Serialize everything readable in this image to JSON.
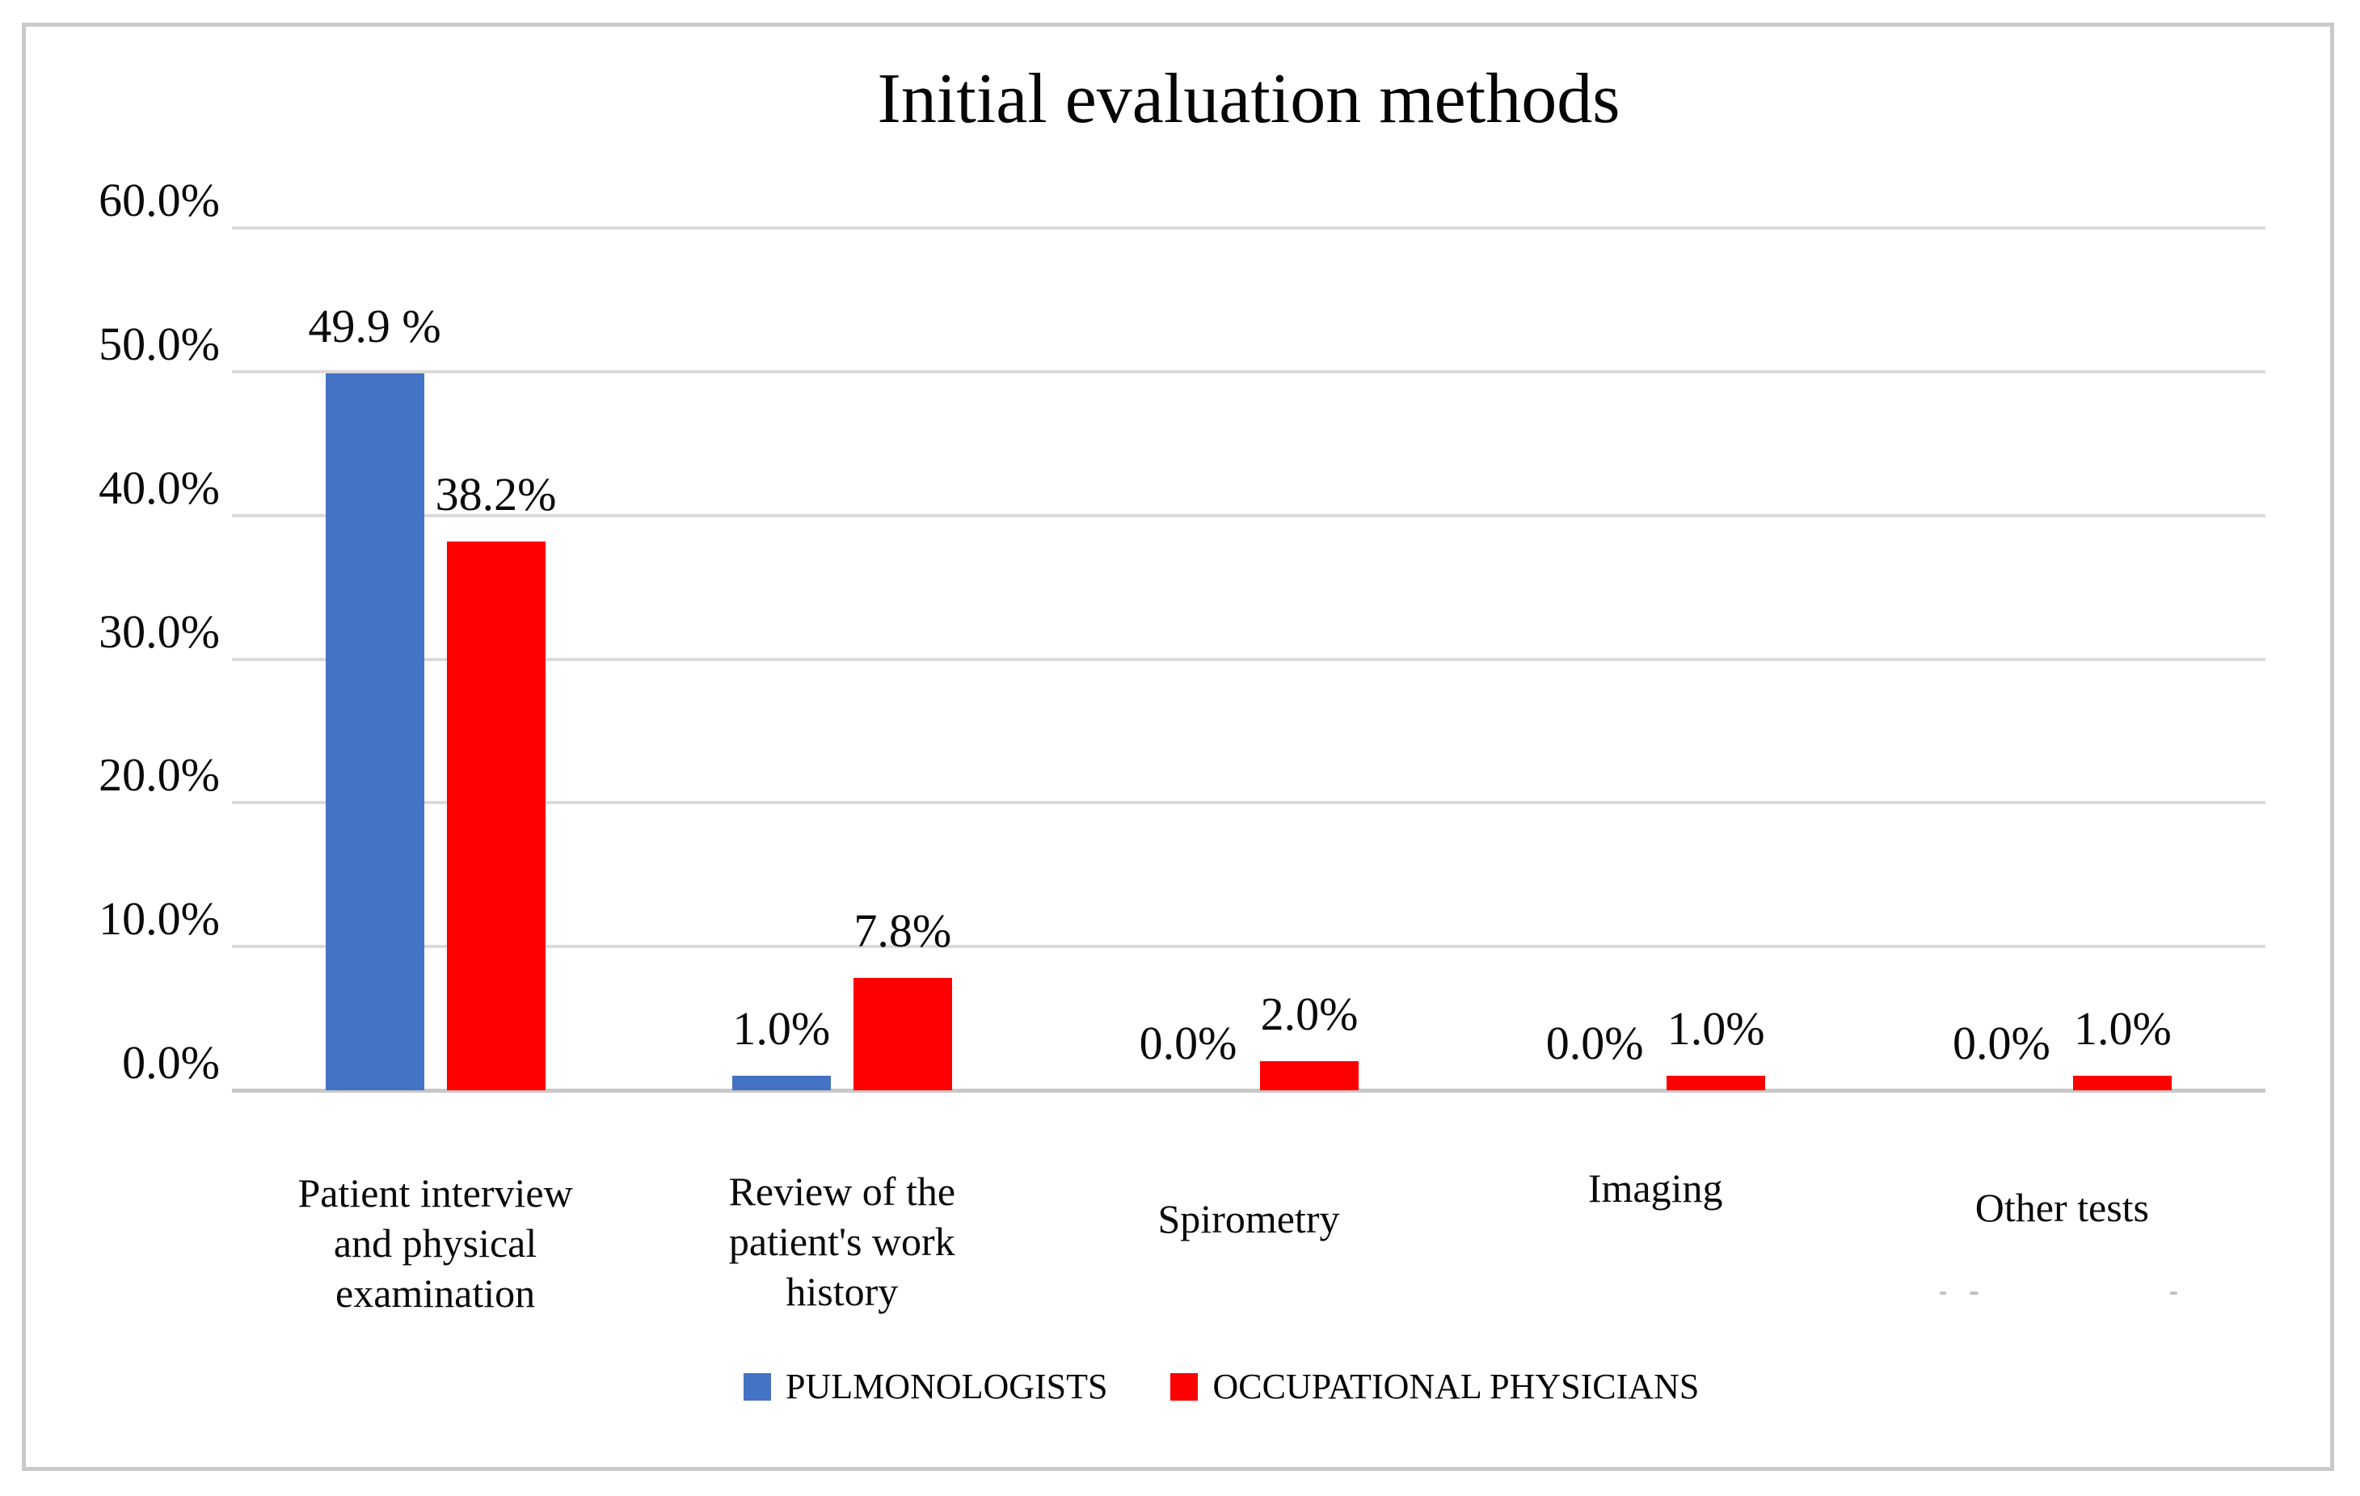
{
  "chart_data": {
    "type": "bar",
    "title": "Initial evaluation methods",
    "categories": [
      "Patient interview and physical examination",
      "Review of the patient's work history",
      "Spirometry",
      "Imaging",
      "Other tests"
    ],
    "category_lines": [
      [
        "Patient interview",
        "and physical",
        "examination"
      ],
      [
        "Review of the",
        "patient's work",
        "history"
      ],
      [
        "Spirometry"
      ],
      [
        "Imaging"
      ],
      [
        "Other tests"
      ]
    ],
    "series": [
      {
        "name": "PULMONOLOGISTS",
        "color": "#4472C4",
        "values": [
          49.9,
          1.0,
          0.0,
          0.0,
          0.0
        ],
        "data_labels": [
          "49.9 %",
          "1.0%",
          "0.0%",
          "0.0%",
          "0.0%"
        ]
      },
      {
        "name": "OCCUPATIONAL PHYSICIANS",
        "color": "#FE0000",
        "values": [
          38.2,
          7.8,
          2.0,
          1.0,
          1.0
        ],
        "data_labels": [
          "38.2%",
          "7.8%",
          "2.0%",
          "1.0%",
          "1.0%"
        ]
      }
    ],
    "y_axis": {
      "tick_values": [
        60,
        50,
        40,
        30,
        20,
        10,
        0
      ],
      "tick_labels": [
        "60.0%",
        "50.0%",
        "40.0%",
        "30.0%",
        "20.0%",
        "10.0%",
        "0.0%"
      ]
    },
    "ylim": [
      0,
      60
    ],
    "grid": true,
    "legend_position": "bottom"
  }
}
